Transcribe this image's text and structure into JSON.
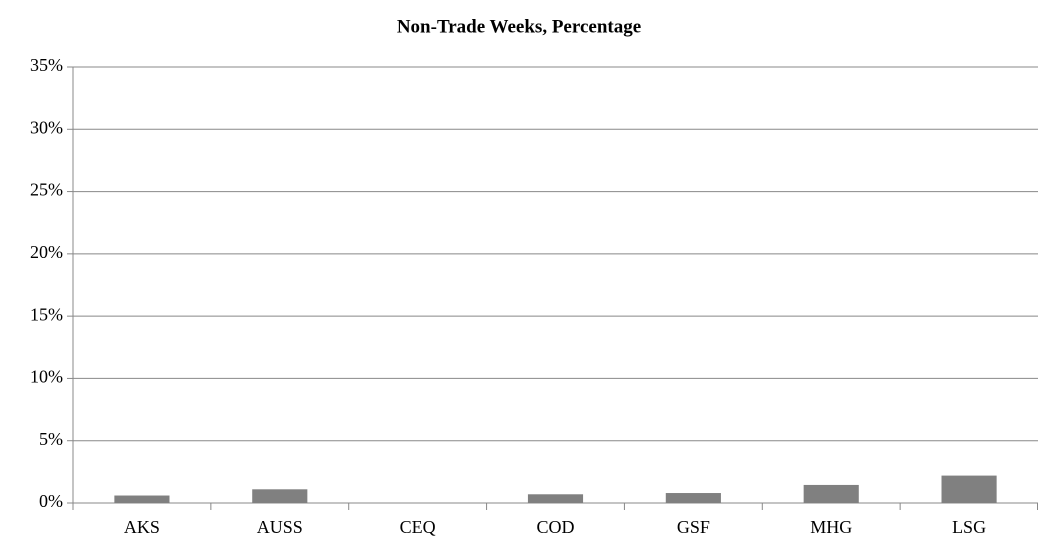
{
  "chart_data": {
    "type": "bar",
    "title": "Non-Trade Weeks, Percentage",
    "categories": [
      "AKS",
      "AUSS",
      "CEQ",
      "COD",
      "GSF",
      "MHG",
      "LSG"
    ],
    "values": [
      0.6,
      1.1,
      0,
      0.7,
      0.8,
      1.45,
      2.2
    ],
    "color": "#808080",
    "ylim": [
      0,
      35
    ],
    "yticks": [
      {
        "value": 0,
        "label": "0%"
      },
      {
        "value": 5,
        "label": "5%"
      },
      {
        "value": 10,
        "label": "10%"
      },
      {
        "value": 15,
        "label": "15%"
      },
      {
        "value": 20,
        "label": "20%"
      },
      {
        "value": 25,
        "label": "25%"
      },
      {
        "value": 30,
        "label": "30%"
      },
      {
        "value": 35,
        "label": "35%"
      }
    ],
    "grid": true
  }
}
